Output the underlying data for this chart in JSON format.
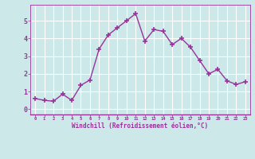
{
  "x": [
    0,
    1,
    2,
    3,
    4,
    5,
    6,
    7,
    8,
    9,
    10,
    11,
    12,
    13,
    14,
    15,
    16,
    17,
    18,
    19,
    20,
    21,
    22,
    23
  ],
  "y": [
    0.6,
    0.5,
    0.45,
    0.85,
    0.5,
    1.35,
    1.65,
    3.4,
    4.2,
    4.6,
    5.0,
    5.4,
    3.85,
    4.5,
    4.4,
    3.65,
    4.0,
    3.5,
    2.75,
    2.0,
    2.25,
    1.6,
    1.4,
    1.55
  ],
  "line_color": "#993399",
  "marker": "+",
  "markersize": 4,
  "linewidth": 1,
  "xlabel": "Windchill (Refroidissement éolien,°C)",
  "xlim": [
    -0.5,
    23.5
  ],
  "ylim": [
    -0.3,
    5.9
  ],
  "yticks": [
    0,
    1,
    2,
    3,
    4,
    5
  ],
  "xticks": [
    0,
    1,
    2,
    3,
    4,
    5,
    6,
    7,
    8,
    9,
    10,
    11,
    12,
    13,
    14,
    15,
    16,
    17,
    18,
    19,
    20,
    21,
    22,
    23
  ],
  "bg_color": "#cce8e8",
  "grid_color": "#ffffff",
  "tick_color": "#993399",
  "label_color": "#993399"
}
